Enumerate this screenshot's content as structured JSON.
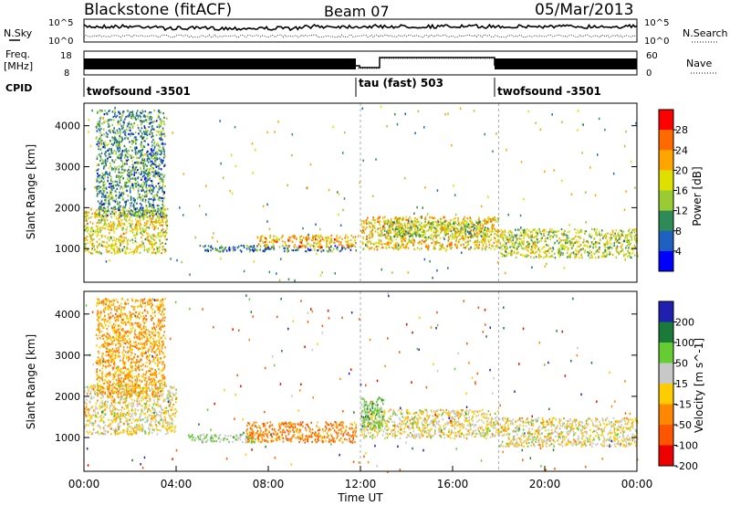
{
  "header": {
    "station": "Blackstone (fitACF)",
    "beam": "Beam 07",
    "date": "05/Mar/2013"
  },
  "summary_panels": {
    "nsky_label": "N.Sky",
    "nsky_ticks": [
      "10^5",
      "10^0"
    ],
    "nsearch_label": "N.Search",
    "nsearch_ticks": [
      "10^5",
      "10^0"
    ],
    "freq_label": "Freq.",
    "freq_unit": "[MHz]",
    "freq_ticks": [
      "18",
      "8"
    ],
    "nave_label": "Nave",
    "nave_ticks": [
      "60",
      "0"
    ],
    "cpid_label": "CPID",
    "cpid_segments": [
      {
        "label": "twofsound -3501",
        "start_hour": 0,
        "end_hour": 12
      },
      {
        "label": "tau (fast) 503",
        "start_hour": 12,
        "end_hour": 18
      },
      {
        "label": "twofsound -3501",
        "start_hour": 18,
        "end_hour": 24
      }
    ]
  },
  "power_colorbar": {
    "label": "Power [dB]",
    "ticks": [
      "28",
      "24",
      "20",
      "16",
      "12",
      "8",
      "4"
    ],
    "colors": [
      "#ff0000",
      "#ff6a00",
      "#ffa500",
      "#e0e000",
      "#99cc33",
      "#2e8b57",
      "#1e60c0",
      "#0000ff"
    ]
  },
  "velocity_colorbar": {
    "label": "Velocity [m s^-1]",
    "ticks": [
      "200",
      "100",
      "50",
      "15",
      "-15",
      "-50",
      "-100",
      "-200"
    ],
    "colors": [
      "#2020b0",
      "#1a7a3a",
      "#66cc33",
      "#c8c8c8",
      "#ffcc00",
      "#ff8800",
      "#ff5500",
      "#ee0000"
    ]
  },
  "chart_data": [
    {
      "type": "heatmap",
      "title": "",
      "quantity": "Power",
      "ylabel": "Slant Range [km]",
      "xlabel": "Time UT",
      "ylim": [
        180,
        4550
      ],
      "xlim": [
        0,
        24
      ],
      "y_ticks": [
        1000,
        2000,
        3000,
        4000
      ],
      "x_ticks": [
        "00:00",
        "04:00",
        "08:00",
        "12:00",
        "16:00",
        "20:00",
        "00:00"
      ],
      "bands": [
        {
          "t": [
            0.0,
            3.6
          ],
          "r": [
            900,
            2000
          ],
          "v": 18
        },
        {
          "t": [
            0.5,
            3.5
          ],
          "r": [
            1800,
            4400
          ],
          "v": 10
        },
        {
          "t": [
            5.0,
            11.8
          ],
          "r": [
            950,
            1100
          ],
          "v": 8
        },
        {
          "t": [
            7.5,
            11.8
          ],
          "r": [
            1050,
            1350
          ],
          "v": 22
        },
        {
          "t": [
            12.0,
            18.0
          ],
          "r": [
            1000,
            1800
          ],
          "v": 20
        },
        {
          "t": [
            13.0,
            17.5
          ],
          "r": [
            1300,
            1700
          ],
          "v": 14
        },
        {
          "t": [
            18.0,
            24.0
          ],
          "r": [
            800,
            1500
          ],
          "v": 16
        }
      ]
    },
    {
      "type": "heatmap",
      "title": "",
      "quantity": "Velocity",
      "ylabel": "Slant Range [km]",
      "xlabel": "Time UT",
      "ylim": [
        180,
        4550
      ],
      "xlim": [
        0,
        24
      ],
      "y_ticks": [
        1000,
        2000,
        3000,
        4000
      ],
      "x_ticks": [
        "00:00",
        "04:00",
        "08:00",
        "12:00",
        "16:00",
        "20:00",
        "00:00"
      ],
      "bands": [
        {
          "t": [
            0.0,
            4.0
          ],
          "r": [
            1100,
            2300
          ],
          "v": 0
        },
        {
          "t": [
            0.5,
            3.5
          ],
          "r": [
            2000,
            4400
          ],
          "v": -40
        },
        {
          "t": [
            4.5,
            7.5
          ],
          "r": [
            900,
            1100
          ],
          "v": 40
        },
        {
          "t": [
            7.0,
            11.8
          ],
          "r": [
            900,
            1400
          ],
          "v": -60
        },
        {
          "t": [
            12.0,
            18.0
          ],
          "r": [
            1000,
            1700
          ],
          "v": 0
        },
        {
          "t": [
            12.0,
            13.0
          ],
          "r": [
            1200,
            2000
          ],
          "v": 50
        },
        {
          "t": [
            18.0,
            24.0
          ],
          "r": [
            800,
            1500
          ],
          "v": 0
        }
      ]
    }
  ]
}
